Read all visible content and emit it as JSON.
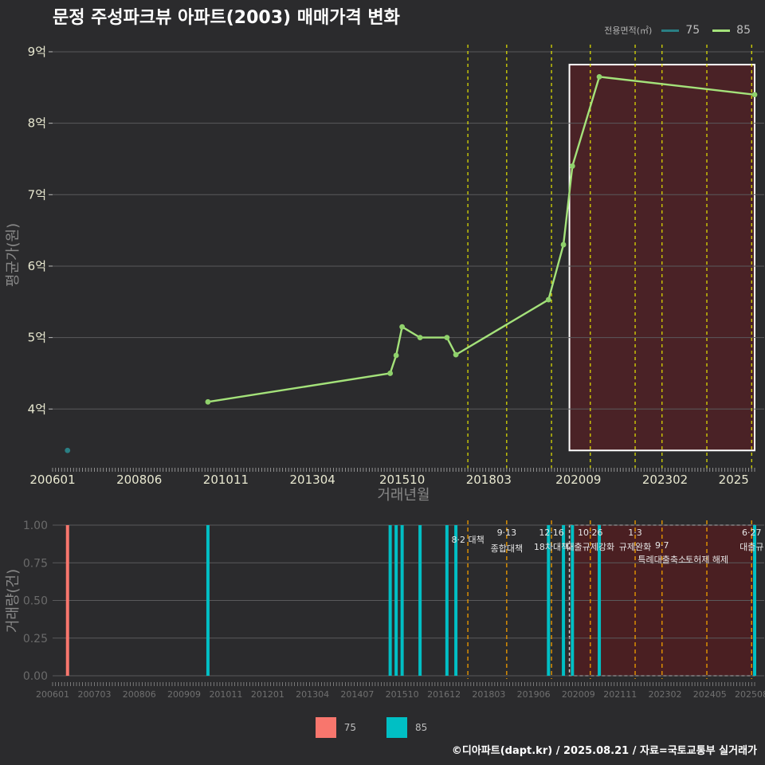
{
  "title": "문정 주성파크뷰 아파트(2003) 매매가격 변화",
  "legend": {
    "title": "전용면적(㎡)",
    "items": [
      {
        "label": "75",
        "color": "#2a7f84"
      },
      {
        "label": "85",
        "color": "#a4e27a"
      }
    ]
  },
  "bottom_legend": [
    {
      "label": "75",
      "color": "#f8766d"
    },
    {
      "label": "85",
      "color": "#00bfc4"
    }
  ],
  "footer": "©디아파트(dapt.kr) / 2025.08.21 / 자료=국토교통부 실거래가",
  "chart_data": [
    {
      "type": "line",
      "title": "문정 주성파크뷰 아파트(2003) 매매가격 변화",
      "xlabel": "거래년월",
      "ylabel": "평균가(원)",
      "xlim": [
        "2006-01",
        "2025-08"
      ],
      "ylim": [
        3.2,
        9.1
      ],
      "x_ticks": [
        "200601",
        "200806",
        "201011",
        "201304",
        "201510",
        "201803",
        "202009",
        "202302",
        "2025"
      ],
      "y_ticks": [
        "4억",
        "5억",
        "6억",
        "7억",
        "8억",
        "9억"
      ],
      "y_tick_values": [
        4,
        5,
        6,
        7,
        8,
        9
      ],
      "grid": true,
      "legend_position": "top-right",
      "series": [
        {
          "name": "75",
          "color": "#2a7f84",
          "points": [
            [
              "2006-06",
              3.42
            ]
          ]
        },
        {
          "name": "85",
          "color": "#a4e27a",
          "points": [
            [
              "2010-05",
              4.1
            ],
            [
              "2015-06",
              4.5
            ],
            [
              "2015-08",
              4.75
            ],
            [
              "2015-10",
              5.15
            ],
            [
              "2016-04",
              5.0
            ],
            [
              "2017-01",
              5.0
            ],
            [
              "2017-04",
              4.76
            ],
            [
              "2019-11",
              5.53
            ],
            [
              "2020-04",
              6.3
            ],
            [
              "2020-07",
              7.4
            ],
            [
              "2021-04",
              8.65
            ],
            [
              "2025-08",
              8.4
            ]
          ]
        }
      ],
      "policy_lines": [
        "2017-08",
        "2018-09",
        "2019-12",
        "2021-01",
        "2022-04",
        "2023-01",
        "2024-04",
        "2025-07"
      ],
      "highlight_region": {
        "x_start": "2020-06",
        "x_end": "2025-08",
        "y_start": 3.42,
        "y_end": 8.82
      }
    },
    {
      "type": "bar",
      "xlabel": "",
      "ylabel": "거래량(건)",
      "xlim": [
        "2006-01",
        "2025-08"
      ],
      "ylim": [
        0,
        1.0
      ],
      "x_ticks": [
        "200601",
        "200703",
        "200806",
        "200909",
        "201011",
        "201201",
        "201304",
        "201407",
        "201510",
        "201612",
        "201803",
        "201906",
        "202009",
        "202111",
        "202302",
        "202405",
        "202508"
      ],
      "y_ticks": [
        "0.00",
        "0.25",
        "0.50",
        "0.75",
        "1.00"
      ],
      "y_tick_values": [
        0,
        0.25,
        0.5,
        0.75,
        1.0
      ],
      "grid": true,
      "bars": [
        {
          "x": "2006-06",
          "value": 1,
          "series": "75"
        },
        {
          "x": "2010-05",
          "value": 1,
          "series": "85"
        },
        {
          "x": "2015-06",
          "value": 1,
          "series": "85"
        },
        {
          "x": "2015-08",
          "value": 1,
          "series": "85"
        },
        {
          "x": "2015-10",
          "value": 1,
          "series": "85"
        },
        {
          "x": "2016-04",
          "value": 1,
          "series": "85"
        },
        {
          "x": "2017-01",
          "value": 1,
          "series": "85"
        },
        {
          "x": "2017-04",
          "value": 1,
          "series": "85"
        },
        {
          "x": "2019-11",
          "value": 1,
          "series": "85"
        },
        {
          "x": "2020-04",
          "value": 1,
          "series": "85"
        },
        {
          "x": "2020-07",
          "value": 1,
          "series": "85"
        },
        {
          "x": "2021-04",
          "value": 1,
          "series": "85"
        },
        {
          "x": "2025-08",
          "value": 1,
          "series": "85"
        }
      ],
      "policy_annotations": [
        {
          "x": "2017-08",
          "date": "",
          "label": "8·2 대책"
        },
        {
          "x": "2018-09",
          "date": "9·13",
          "label": "종합대책"
        },
        {
          "x": "2019-12",
          "date": "12·16",
          "label": "18차대책"
        },
        {
          "x": "2021-01",
          "date": "10·26",
          "label": "대출규제강화"
        },
        {
          "x": "2022-04",
          "date": "1·3",
          "label": "규제완화"
        },
        {
          "x": "2023-01",
          "date": "9·7",
          "label": "특례대출축소"
        },
        {
          "x": "2024-04",
          "date": "",
          "label": "토허제 해제"
        },
        {
          "x": "2025-07",
          "date": "6·27",
          "label": "대출규"
        }
      ],
      "highlight_region": {
        "x_start": "2020-06",
        "x_end": "2025-08",
        "y_start": 0,
        "y_end": 1.0
      }
    }
  ]
}
